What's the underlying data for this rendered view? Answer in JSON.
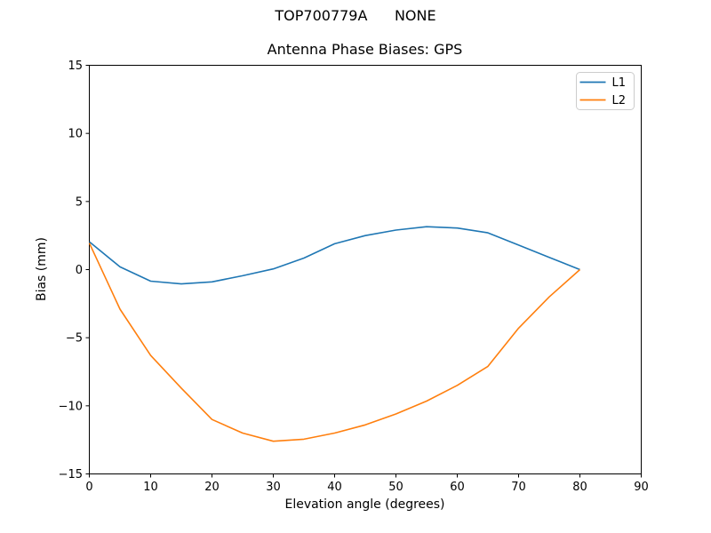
{
  "figure": {
    "suptitle": "TOP700779A      NONE"
  },
  "chart_data": {
    "type": "line",
    "title": "Antenna Phase Biases: GPS",
    "xlabel": "Elevation angle (degrees)",
    "ylabel": "Bias (mm)",
    "xlim": [
      0,
      90
    ],
    "ylim": [
      -15,
      15
    ],
    "x_ticks": [
      0,
      10,
      20,
      30,
      40,
      50,
      60,
      70,
      80,
      90
    ],
    "y_ticks": [
      -15,
      -10,
      -5,
      0,
      5,
      10,
      15
    ],
    "grid": false,
    "legend_position": "upper right",
    "x": [
      0,
      5,
      10,
      15,
      20,
      25,
      30,
      35,
      40,
      45,
      50,
      55,
      60,
      65,
      70,
      75,
      80
    ],
    "series": [
      {
        "name": "L1",
        "color": "#1f77b4",
        "values": [
          2.05,
          0.2,
          -0.85,
          -1.05,
          -0.9,
          -0.45,
          0.05,
          0.85,
          1.9,
          2.5,
          2.9,
          3.15,
          3.05,
          2.7,
          1.8,
          0.9,
          0.0
        ]
      },
      {
        "name": "L2",
        "color": "#ff7f0e",
        "values": [
          1.95,
          -2.9,
          -6.3,
          -8.7,
          -11.0,
          -12.0,
          -12.6,
          -12.45,
          -12.0,
          -11.4,
          -10.6,
          -9.65,
          -8.5,
          -7.1,
          -4.3,
          -2.0,
          0.0
        ]
      }
    ]
  }
}
